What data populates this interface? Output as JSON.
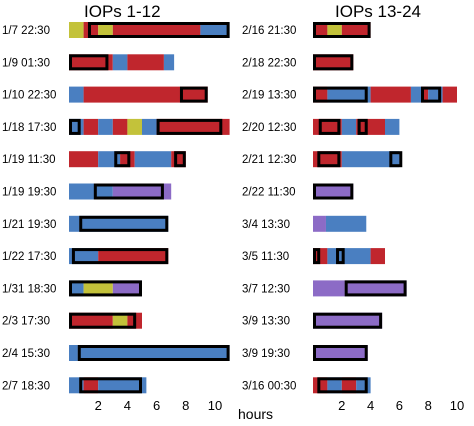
{
  "colors": {
    "yellow": "#c3c23a",
    "red": "#c0262d",
    "blue": "#4a7fc1",
    "purple": "#8c6bc6",
    "box": "#000000"
  },
  "chart_data": [
    {
      "type": "timeline",
      "title": "IOPs 1-12",
      "xlabel": "hours",
      "xlim": [
        0,
        11.5
      ],
      "xticks": [
        2,
        4,
        6,
        8,
        10
      ],
      "rows": [
        {
          "label": "1/7 22:30",
          "segments": [
            {
              "start": 0,
              "end": 1,
              "color": "yellow"
            },
            {
              "start": 1,
              "end": 2,
              "color": "red"
            },
            {
              "start": 2,
              "end": 3,
              "color": "yellow"
            },
            {
              "start": 3,
              "end": 9,
              "color": "red"
            },
            {
              "start": 9,
              "end": 11,
              "color": "blue"
            }
          ],
          "boxes": [
            {
              "start": 1.3,
              "end": 11
            }
          ]
        },
        {
          "label": "1/9 01:30",
          "segments": [
            {
              "start": 0,
              "end": 3,
              "color": "red"
            },
            {
              "start": 3,
              "end": 4,
              "color": "blue"
            },
            {
              "start": 4,
              "end": 6.5,
              "color": "red"
            },
            {
              "start": 6.5,
              "end": 7.2,
              "color": "blue"
            }
          ],
          "boxes": [
            {
              "start": 0,
              "end": 2.7
            }
          ]
        },
        {
          "label": "1/10 22:30",
          "segments": [
            {
              "start": 0,
              "end": 1,
              "color": "blue"
            },
            {
              "start": 1,
              "end": 9.5,
              "color": "red"
            }
          ],
          "boxes": [
            {
              "start": 7.6,
              "end": 9.5
            }
          ]
        },
        {
          "label": "1/18 17:30",
          "segments": [
            {
              "start": 0,
              "end": 1,
              "color": "blue"
            },
            {
              "start": 1,
              "end": 2,
              "color": "red"
            },
            {
              "start": 2,
              "end": 3,
              "color": "blue"
            },
            {
              "start": 3,
              "end": 4,
              "color": "red"
            },
            {
              "start": 4,
              "end": 5,
              "color": "yellow"
            },
            {
              "start": 5,
              "end": 6,
              "color": "blue"
            },
            {
              "start": 6,
              "end": 11,
              "color": "red"
            }
          ],
          "boxes": [
            {
              "start": 0,
              "end": 0.8
            },
            {
              "start": 6,
              "end": 10.5
            }
          ]
        },
        {
          "label": "1/19 11:30",
          "segments": [
            {
              "start": 0,
              "end": 2,
              "color": "red"
            },
            {
              "start": 2,
              "end": 3.5,
              "color": "blue"
            },
            {
              "start": 3.5,
              "end": 4.5,
              "color": "red"
            },
            {
              "start": 4.5,
              "end": 7,
              "color": "blue"
            },
            {
              "start": 7,
              "end": 8,
              "color": "red"
            }
          ],
          "boxes": [
            {
              "start": 3.1,
              "end": 4.2
            },
            {
              "start": 7.2,
              "end": 8
            }
          ]
        },
        {
          "label": "1/19 19:30",
          "segments": [
            {
              "start": 0,
              "end": 3,
              "color": "blue"
            },
            {
              "start": 3,
              "end": 7,
              "color": "purple"
            }
          ],
          "boxes": [
            {
              "start": 1.7,
              "end": 6.5
            }
          ]
        },
        {
          "label": "1/21 19:30",
          "segments": [
            {
              "start": 0,
              "end": 0.7,
              "color": "blue"
            },
            {
              "start": 0.7,
              "end": 6.8,
              "color": "blue"
            }
          ],
          "boxes": [
            {
              "start": 0.7,
              "end": 6.8
            }
          ]
        },
        {
          "label": "1/22 17:30",
          "segments": [
            {
              "start": 0,
              "end": 2,
              "color": "blue"
            },
            {
              "start": 2,
              "end": 6.8,
              "color": "red"
            }
          ],
          "boxes": [
            {
              "start": 0.2,
              "end": 6.8
            }
          ]
        },
        {
          "label": "1/31 18:30",
          "segments": [
            {
              "start": 0,
              "end": 1,
              "color": "blue"
            },
            {
              "start": 1,
              "end": 3,
              "color": "yellow"
            },
            {
              "start": 3,
              "end": 5,
              "color": "purple"
            }
          ],
          "boxes": [
            {
              "start": 0,
              "end": 5
            }
          ]
        },
        {
          "label": "2/3 17:30",
          "segments": [
            {
              "start": 0,
              "end": 3,
              "color": "red"
            },
            {
              "start": 3,
              "end": 4,
              "color": "yellow"
            },
            {
              "start": 4,
              "end": 5,
              "color": "red"
            }
          ],
          "boxes": [
            {
              "start": 0,
              "end": 4.6
            }
          ]
        },
        {
          "label": "2/4 15:30",
          "segments": [
            {
              "start": 0,
              "end": 0.6,
              "color": "blue"
            },
            {
              "start": 0.6,
              "end": 11,
              "color": "blue"
            }
          ],
          "boxes": [
            {
              "start": 0.6,
              "end": 11
            }
          ]
        },
        {
          "label": "2/7 18:30",
          "segments": [
            {
              "start": 0,
              "end": 1,
              "color": "blue"
            },
            {
              "start": 1,
              "end": 2,
              "color": "red"
            },
            {
              "start": 2,
              "end": 5.3,
              "color": "blue"
            }
          ],
          "boxes": [
            {
              "start": 0.7,
              "end": 5
            }
          ]
        }
      ]
    },
    {
      "type": "timeline",
      "title": "IOPs 13-24",
      "xlabel": "",
      "xlim": [
        0,
        10
      ],
      "xticks": [
        2,
        4,
        6,
        8,
        10
      ],
      "rows": [
        {
          "label": "2/16 21:30",
          "segments": [
            {
              "start": 0,
              "end": 1,
              "color": "red"
            },
            {
              "start": 1,
              "end": 2,
              "color": "yellow"
            },
            {
              "start": 2,
              "end": 4,
              "color": "red"
            }
          ],
          "boxes": [
            {
              "start": 0,
              "end": 4
            }
          ]
        },
        {
          "label": "2/18 22:30",
          "segments": [
            {
              "start": 0,
              "end": 2.8,
              "color": "red"
            }
          ],
          "boxes": [
            {
              "start": 0,
              "end": 2.8
            }
          ]
        },
        {
          "label": "2/19 13:30",
          "segments": [
            {
              "start": 0,
              "end": 1,
              "color": "red"
            },
            {
              "start": 1,
              "end": 4,
              "color": "blue"
            },
            {
              "start": 4,
              "end": 6.8,
              "color": "red"
            },
            {
              "start": 6.8,
              "end": 7.5,
              "color": "blue"
            },
            {
              "start": 7.5,
              "end": 8,
              "color": "red"
            },
            {
              "start": 8,
              "end": 9,
              "color": "blue"
            },
            {
              "start": 9,
              "end": 10,
              "color": "red"
            }
          ],
          "boxes": [
            {
              "start": 0,
              "end": 3.8
            },
            {
              "start": 7.5,
              "end": 8.9
            }
          ]
        },
        {
          "label": "2/20 12:30",
          "segments": [
            {
              "start": 0,
              "end": 2,
              "color": "red"
            },
            {
              "start": 2,
              "end": 3,
              "color": "blue"
            },
            {
              "start": 3,
              "end": 5,
              "color": "red"
            },
            {
              "start": 5,
              "end": 6,
              "color": "blue"
            }
          ],
          "boxes": [
            {
              "start": 0.4,
              "end": 1.9
            },
            {
              "start": 3.1,
              "end": 3.8
            }
          ]
        },
        {
          "label": "2/21 12:30",
          "segments": [
            {
              "start": 0,
              "end": 2,
              "color": "red"
            },
            {
              "start": 2,
              "end": 5,
              "color": "blue"
            },
            {
              "start": 5,
              "end": 6,
              "color": "blue"
            }
          ],
          "boxes": [
            {
              "start": 0.3,
              "end": 1.9
            },
            {
              "start": 5.3,
              "end": 6.2
            }
          ]
        },
        {
          "label": "2/22 11:30",
          "segments": [
            {
              "start": 0,
              "end": 2.8,
              "color": "purple"
            }
          ],
          "boxes": [
            {
              "start": 0,
              "end": 2.8
            }
          ]
        },
        {
          "label": "3/4 13:30",
          "segments": [
            {
              "start": 0,
              "end": 0.9,
              "color": "purple"
            },
            {
              "start": 0.9,
              "end": 3.7,
              "color": "blue"
            }
          ],
          "boxes": []
        },
        {
          "label": "3/5 11:30",
          "segments": [
            {
              "start": 0,
              "end": 1,
              "color": "red"
            },
            {
              "start": 1,
              "end": 1.7,
              "color": "blue"
            },
            {
              "start": 1.7,
              "end": 4,
              "color": "blue"
            },
            {
              "start": 4,
              "end": 5,
              "color": "red"
            }
          ],
          "boxes": [
            {
              "start": 0,
              "end": 0.5
            },
            {
              "start": 1.6,
              "end": 2.2
            }
          ]
        },
        {
          "label": "3/7 12:30",
          "segments": [
            {
              "start": 0,
              "end": 2.2,
              "color": "purple"
            },
            {
              "start": 2.2,
              "end": 6.5,
              "color": "purple"
            }
          ],
          "boxes": [
            {
              "start": 2.2,
              "end": 6.5
            }
          ]
        },
        {
          "label": "3/9 13:30",
          "segments": [
            {
              "start": 0,
              "end": 4.8,
              "color": "purple"
            }
          ],
          "boxes": [
            {
              "start": 0,
              "end": 4.8
            }
          ]
        },
        {
          "label": "3/9 19:30",
          "segments": [
            {
              "start": 0,
              "end": 3.8,
              "color": "purple"
            }
          ],
          "boxes": [
            {
              "start": 0,
              "end": 3.8
            }
          ]
        },
        {
          "label": "3/16 00:30",
          "segments": [
            {
              "start": 0,
              "end": 1,
              "color": "red"
            },
            {
              "start": 1,
              "end": 2,
              "color": "blue"
            },
            {
              "start": 2,
              "end": 3,
              "color": "red"
            },
            {
              "start": 3,
              "end": 4,
              "color": "blue"
            }
          ],
          "boxes": [
            {
              "start": 0.3,
              "end": 3.8
            }
          ]
        }
      ]
    }
  ]
}
